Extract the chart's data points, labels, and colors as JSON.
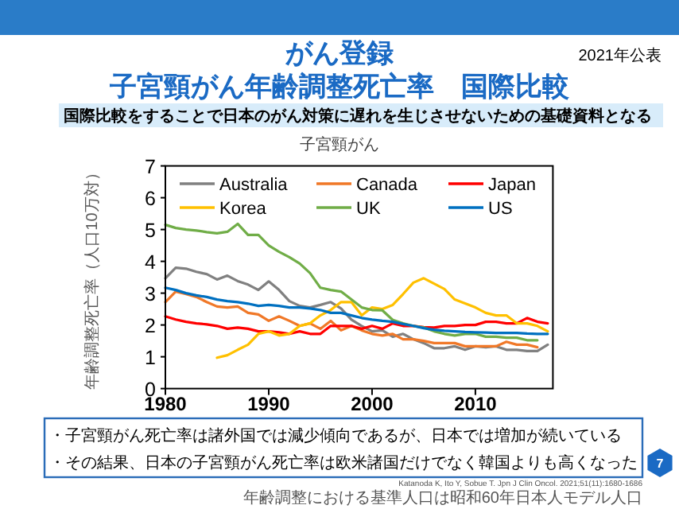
{
  "chart_data": {
    "type": "line",
    "title": "がん登録",
    "subtitle": "子宮頸がん年齢調整死亡率　国際比較",
    "ylabel": "年齢調整死亡率（人口10万対）",
    "annotations": [
      "2021年公表",
      "国際比較をすることで日本のがん対策に遅れを生じさせないための基礎資料となる",
      "子宮頸がん",
      "・子宮頸がん死亡率は諸外国では減少傾向であるが、日本では増加が続いている",
      "・その結果、日本の子宮頸がん死亡率は欧米諸国だけでなく韓国よりも高くなった",
      "Katanoda K, Ito Y, Sobue T. Jpn J Clin Oncol. 2021;51(11):1680-1686",
      "年齢調整における基準人口は昭和60年日本人モデル人口",
      "7"
    ],
    "x": [
      1980,
      1981,
      1982,
      1983,
      1984,
      1985,
      1986,
      1987,
      1988,
      1989,
      1990,
      1991,
      1992,
      1993,
      1994,
      1995,
      1996,
      1997,
      1998,
      1999,
      2000,
      2001,
      2002,
      2003,
      2004,
      2005,
      2006,
      2007,
      2008,
      2009,
      2010,
      2011,
      2012,
      2013,
      2014,
      2015,
      2016,
      2017
    ],
    "series": [
      {
        "name": "Australia",
        "color": "#808080",
        "values": [
          3.47,
          3.8,
          3.77,
          3.67,
          3.6,
          3.43,
          3.55,
          3.38,
          3.27,
          3.1,
          3.37,
          3.1,
          2.75,
          2.6,
          2.55,
          2.63,
          2.72,
          2.52,
          2.17,
          1.97,
          1.8,
          1.83,
          1.63,
          1.72,
          1.55,
          1.43,
          1.27,
          1.27,
          1.33,
          1.22,
          1.33,
          1.3,
          1.33,
          1.22,
          1.22,
          1.18,
          1.18,
          1.38
        ]
      },
      {
        "name": "Canada",
        "color": "#f07828",
        "values": [
          2.72,
          3.05,
          2.97,
          2.88,
          2.72,
          2.58,
          2.55,
          2.58,
          2.38,
          2.33,
          2.13,
          2.27,
          2.13,
          1.97,
          2.05,
          1.88,
          2.13,
          1.83,
          1.97,
          1.83,
          1.72,
          1.67,
          1.72,
          1.55,
          1.55,
          1.5,
          1.43,
          1.43,
          1.43,
          1.33,
          1.33,
          1.33,
          1.33,
          1.47,
          1.38,
          1.38,
          1.3,
          null
        ]
      },
      {
        "name": "Japan",
        "color": "#ff0000",
        "values": [
          2.27,
          2.17,
          2.1,
          2.05,
          2.02,
          1.97,
          1.88,
          1.92,
          1.88,
          1.8,
          1.8,
          1.77,
          1.72,
          1.8,
          1.72,
          1.72,
          1.97,
          1.97,
          1.97,
          1.88,
          1.97,
          1.88,
          2.05,
          1.97,
          1.97,
          1.93,
          1.92,
          1.97,
          1.97,
          2.0,
          2.0,
          2.1,
          2.1,
          2.05,
          2.05,
          2.22,
          2.1,
          2.05
        ]
      },
      {
        "name": "Korea",
        "color": "#ffc000",
        "values": [
          null,
          null,
          null,
          null,
          null,
          0.97,
          1.05,
          1.22,
          1.38,
          1.72,
          1.8,
          1.67,
          1.72,
          1.97,
          2.05,
          2.3,
          2.47,
          2.72,
          2.72,
          2.3,
          2.55,
          2.5,
          2.63,
          2.97,
          3.33,
          3.47,
          3.3,
          3.13,
          2.8,
          2.68,
          2.55,
          2.38,
          2.3,
          2.3,
          2.05,
          2.05,
          1.97,
          1.8
        ]
      },
      {
        "name": "UK",
        "color": "#70ad47",
        "values": [
          5.15,
          5.05,
          5.0,
          4.97,
          4.92,
          4.88,
          4.93,
          5.18,
          4.83,
          4.83,
          4.5,
          4.3,
          4.13,
          3.93,
          3.63,
          3.17,
          3.1,
          3.05,
          2.8,
          2.55,
          2.47,
          2.46,
          2.16,
          2.05,
          1.97,
          1.92,
          1.8,
          1.72,
          1.67,
          1.72,
          1.72,
          1.63,
          1.63,
          1.6,
          1.6,
          1.52,
          1.52,
          null
        ]
      },
      {
        "name": "US",
        "color": "#0070c0",
        "values": [
          3.17,
          3.1,
          3.0,
          2.93,
          2.88,
          2.8,
          2.75,
          2.72,
          2.67,
          2.6,
          2.63,
          2.6,
          2.55,
          2.55,
          2.52,
          2.47,
          2.38,
          2.38,
          2.3,
          2.22,
          2.17,
          2.13,
          2.1,
          2.03,
          1.97,
          1.9,
          1.85,
          1.82,
          1.8,
          1.78,
          1.77,
          1.76,
          1.75,
          1.75,
          1.75,
          1.73,
          1.72,
          1.72
        ]
      }
    ],
    "xlim": [
      1980,
      2017.5
    ],
    "ylim": [
      0,
      7
    ],
    "xticks": [
      1980,
      1990,
      2000,
      2010
    ],
    "yticks": [
      0,
      1,
      2,
      3,
      4,
      5,
      6,
      7
    ],
    "legend": "top",
    "grid": false,
    "marker": "none",
    "line_style": "solid"
  }
}
